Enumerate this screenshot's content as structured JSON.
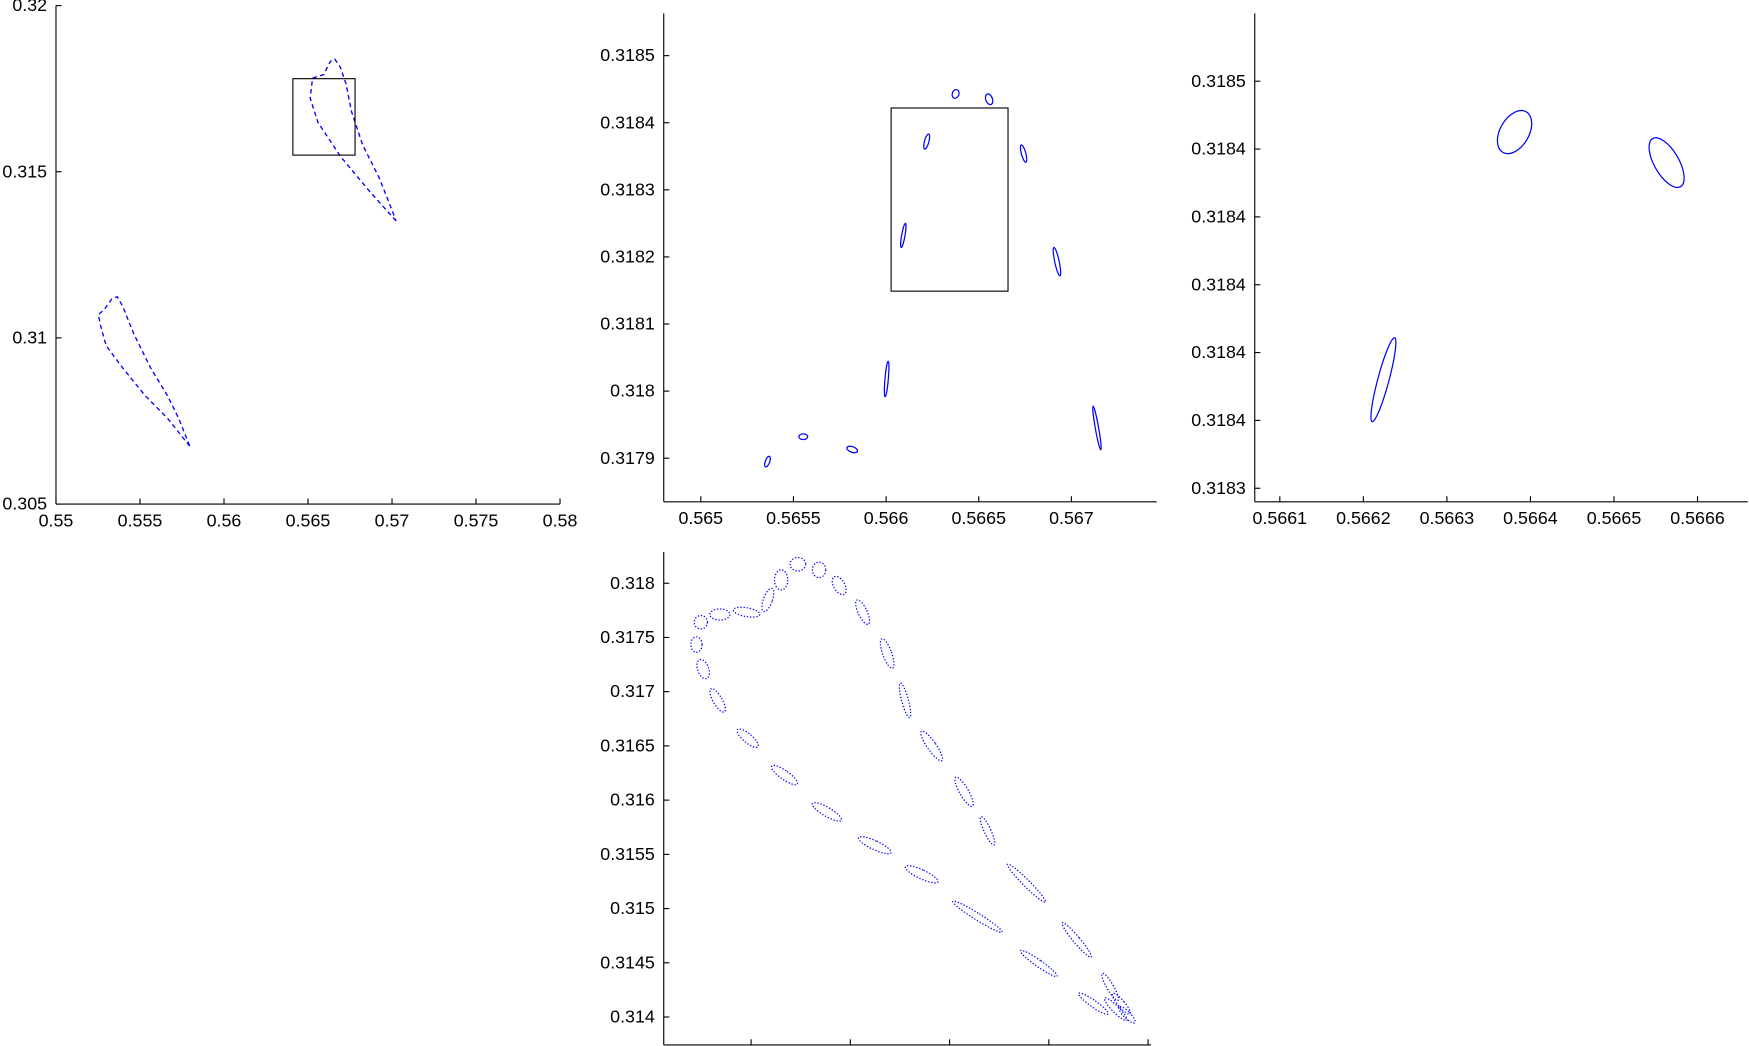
{
  "chart_data": [
    {
      "type": "line",
      "color": "#0000ff",
      "line_style": "dashed",
      "xlim": [
        0.55,
        0.58
      ],
      "ylim": [
        0.305,
        0.32
      ],
      "xticks": [
        0.55,
        0.555,
        0.56,
        0.565,
        0.57,
        0.575,
        0.58
      ],
      "yticks": [
        0.305,
        0.31,
        0.315,
        0.32
      ],
      "series": [
        {
          "x": [
            0.55796,
            0.55664,
            0.55531,
            0.55398,
            0.55299,
            0.55265,
            0.55252,
            0.55285,
            0.55332,
            0.55365,
            0.55398,
            0.55465,
            0.55564,
            0.55664,
            0.5573,
            0.55796
          ],
          "y": [
            0.30674,
            0.30758,
            0.30826,
            0.30909,
            0.30976,
            0.31037,
            0.3107,
            0.31084,
            0.31117,
            0.31124,
            0.31094,
            0.3101,
            0.30909,
            0.30826,
            0.30758,
            0.30674
          ]
        },
        {
          "x": [
            0.57024,
            0.56858,
            0.56692,
            0.5656,
            0.56513,
            0.56527,
            0.56593,
            0.56633,
            0.56659,
            0.56692,
            0.56726,
            0.56759,
            0.56825,
            0.56925,
            0.56991,
            0.57024
          ],
          "y": [
            0.31352,
            0.31446,
            0.31547,
            0.31648,
            0.31721,
            0.31782,
            0.31792,
            0.31832,
            0.31839,
            0.31815,
            0.31765,
            0.31681,
            0.31581,
            0.3148,
            0.31396,
            0.31352
          ]
        }
      ],
      "box": {
        "x": [
          0.5641,
          0.5678
        ],
        "y": [
          0.3155,
          0.3178
        ]
      }
    },
    {
      "type": "ellipse",
      "color": "#0000ff",
      "line_style": "solid",
      "xlim": [
        0.5648,
        0.56746
      ],
      "ylim": [
        0.317835,
        0.318563
      ],
      "xticks": [
        0.565,
        0.5655,
        0.566,
        0.5665,
        0.567
      ],
      "yticks": [
        0.3179,
        0.318,
        0.3181,
        0.3182,
        0.3183,
        0.3184,
        0.3185
      ],
      "ellipses": {
        "x": [
          0.56536,
          0.565553,
          0.565817,
          0.566003,
          0.566093,
          0.566219,
          0.566375,
          0.566556,
          0.566742,
          0.566922,
          0.567138
        ],
        "y": [
          0.317895,
          0.317932,
          0.317913,
          0.318018,
          0.318232,
          0.318372,
          0.318443,
          0.318435,
          0.318354,
          0.318193,
          0.317945
        ],
        "x_radius": [
          1.2e-05,
          2.4e-05,
          3e-05,
          9e-06,
          9e-06,
          1.2e-05,
          1.8e-05,
          1.8e-05,
          1.2e-05,
          1.2e-05,
          9e-06
        ],
        "y_radius": [
          8.3e-06,
          4.2e-06,
          4.2e-06,
          2.66e-05,
          1.83e-05,
          1.16e-05,
          6.6e-06,
          8.3e-06,
          1.33e-05,
          2.16e-05,
          3.32e-05
        ],
        "angle": [
          20,
          0,
          20,
          5,
          10,
          15,
          20,
          -20,
          -15,
          -12,
          -10
        ]
      },
      "box": {
        "x": [
          0.566027,
          0.566658
        ],
        "y": [
          0.318149,
          0.318422
        ]
      }
    },
    {
      "type": "ellipse",
      "color": "#0000ff",
      "line_style": "solid",
      "xlim": [
        0.56607,
        0.56666
      ],
      "ylim": [
        0.318336,
        0.31848
      ],
      "xticks": [
        0.5661,
        0.5662,
        0.5663,
        0.5664,
        0.5665,
        0.5666
      ],
      "yticks": [
        {
          "value": 0.31834,
          "label": "0.3183"
        },
        {
          "value": 0.31836,
          "label": "0.3184"
        },
        {
          "value": 0.31838,
          "label": "0.3184"
        },
        0.3184,
        {
          "value": 0.31842,
          "label": "0.3184"
        },
        {
          "value": 0.31844,
          "label": "0.3184"
        },
        {
          "value": 0.31846,
          "label": "0.3185"
        }
      ],
      "ellipses": {
        "x": [
          0.566381,
          0.566563,
          0.566224
        ],
        "y": [
          0.318445,
          0.318436,
          0.318372
        ],
        "x_radius": [
          1.73e-05,
          1.47e-05,
          6.7e-06
        ],
        "y_radius": [
          6.9e-06,
          8.2e-06,
          1.28e-05
        ],
        "angle": [
          30,
          -30,
          15
        ]
      }
    },
    {
      "type": "ellipse",
      "color": "#0000ff",
      "line_style": "dotted",
      "xlim": [
        0.56512,
        0.57003
      ],
      "ylim": [
        0.313743,
        0.318288
      ],
      "xticks": [
        {
          "value": 0.566,
          "label": null
        },
        {
          "value": 0.567,
          "label": null
        },
        {
          "value": 0.568,
          "label": null
        },
        {
          "value": 0.569,
          "label": null
        },
        {
          "value": 0.57,
          "label": null
        }
      ],
      "yticks": [
        0.314,
        0.3145,
        0.315,
        0.3155,
        0.316,
        0.3165,
        0.317,
        0.3175,
        0.318
      ],
      "ellipses": {
        "x": [
          0.565494,
          0.56545,
          0.565517,
          0.565663,
          0.565966,
          0.566337,
          0.566764,
          0.567247,
          0.567719,
          0.568281,
          0.568899,
          0.569449,
          0.569674,
          0.565685,
          0.565955,
          0.566169,
          0.566303,
          0.566472,
          0.566685,
          0.566888,
          0.567124,
          0.567371,
          0.567551,
          0.56782,
          0.568146,
          0.568382,
          0.568775,
          0.569281,
          0.569618,
          0.56973,
          0.569787
        ],
        "y": [
          0.31764,
          0.317434,
          0.317208,
          0.31692,
          0.316571,
          0.316231,
          0.315892,
          0.315584,
          0.315316,
          0.314925,
          0.314494,
          0.314123,
          0.314072,
          0.317712,
          0.317733,
          0.317846,
          0.318031,
          0.318175,
          0.318123,
          0.317979,
          0.317733,
          0.317352,
          0.31692,
          0.316499,
          0.316077,
          0.315717,
          0.315234,
          0.31471,
          0.314278,
          0.314123,
          0.314021
        ],
        "x_radius": [
          6.7e-05,
          5.6e-05,
          5.6e-05,
          4.5e-05,
          4.5e-05,
          4.5e-05,
          4.5e-05,
          4.5e-05,
          4.5e-05,
          3.4e-05,
          3.4e-05,
          3.4e-05,
          3.4e-05,
          0.000101,
          0.000135,
          4.5e-05,
          6.7e-05,
          7.9e-05,
          6.7e-05,
          5.6e-05,
          4.5e-05,
          4.5e-05,
          3.4e-05,
          4.5e-05,
          4.5e-05,
          3.4e-05,
          3.4e-05,
          3.4e-05,
          3.4e-05,
          3.4e-05,
          3.4e-05
        ],
        "y_radius": [
          6.2e-05,
          7.2e-05,
          9.3e-05,
          0.000123,
          0.000123,
          0.000144,
          0.000154,
          0.000165,
          0.000165,
          0.000267,
          0.000206,
          0.000165,
          0.000144,
          5.1e-05,
          4.1e-05,
          0.000113,
          9.3e-05,
          6.2e-05,
          7.2e-05,
          9.3e-05,
          0.000123,
          0.000144,
          0.000165,
          0.000165,
          0.000154,
          0.000144,
          0.000247,
          0.000206,
          0.000144,
          0.000123,
          0.000103
        ],
        "angle": [
          0,
          0,
          -20,
          -30,
          -50,
          -55,
          -60,
          -65,
          -65,
          -58,
          -55,
          -55,
          -45,
          0,
          10,
          20,
          0,
          0,
          0,
          -30,
          -25,
          -20,
          -15,
          -35,
          -30,
          -25,
          -45,
          -40,
          -30,
          -40,
          -45
        ]
      }
    }
  ]
}
